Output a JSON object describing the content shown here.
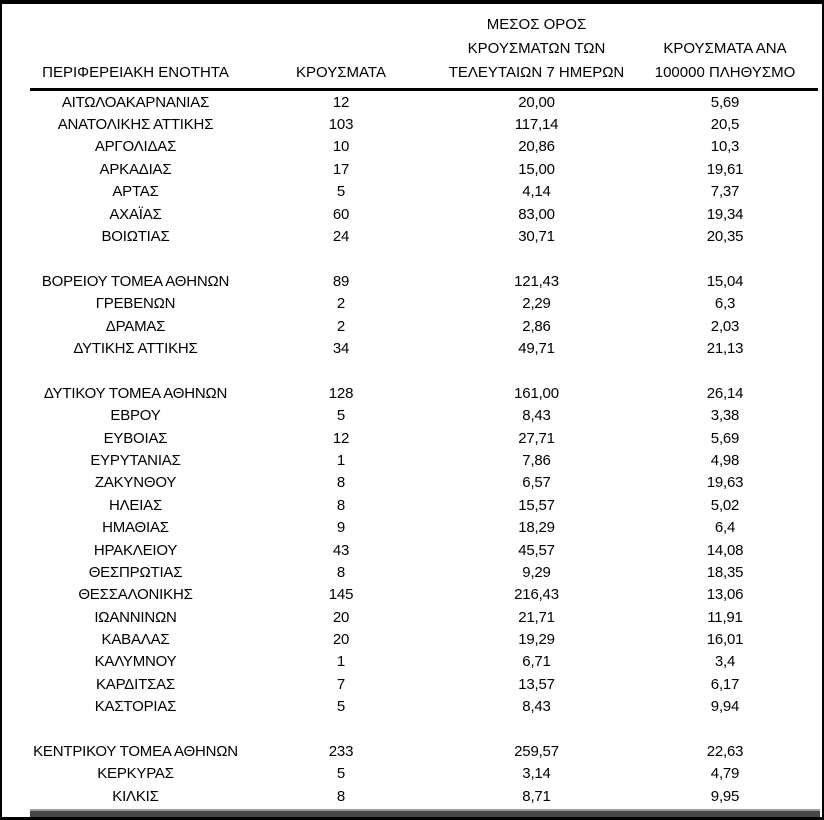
{
  "table": {
    "column_headers": [
      {
        "lines": [
          "ΠΕΡΙΦΕΡΕΙΑΚΗ ΕΝΟΤΗΤΑ"
        ]
      },
      {
        "lines": [
          "ΚΡΟΥΣΜΑΤΑ"
        ]
      },
      {
        "lines": [
          "ΜΕΣΟΣ ΟΡΟΣ",
          "ΚΡΟΥΣΜΑΤΩΝ ΤΩΝ",
          "ΤΕΛΕΥΤΑΙΩΝ 7 ΗΜΕΡΩΝ"
        ]
      },
      {
        "lines": [
          "ΚΡΟΥΣΜΑΤΑ ΑΝΑ",
          "100000 ΠΛΗΘΥΣΜΟ"
        ]
      }
    ],
    "rows": [
      {
        "region": "ΑΙΤΩΛΟΑΚΑΡΝΑΝΙΑΣ",
        "cases": "12",
        "avg_7day": "20,00",
        "per_100k": "5,69"
      },
      {
        "region": "ΑΝΑΤΟΛΙΚΗΣ ΑΤΤΙΚΗΣ",
        "cases": "103",
        "avg_7day": "117,14",
        "per_100k": "20,5"
      },
      {
        "region": "ΑΡΓΟΛΙΔΑΣ",
        "cases": "10",
        "avg_7day": "20,86",
        "per_100k": "10,3"
      },
      {
        "region": "ΑΡΚΑΔΙΑΣ",
        "cases": "17",
        "avg_7day": "15,00",
        "per_100k": "19,61"
      },
      {
        "region": "ΑΡΤΑΣ",
        "cases": "5",
        "avg_7day": "4,14",
        "per_100k": "7,37"
      },
      {
        "region": "ΑΧΑΪΑΣ",
        "cases": "60",
        "avg_7day": "83,00",
        "per_100k": "19,34"
      },
      {
        "region": "ΒΟΙΩΤΙΑΣ",
        "cases": "24",
        "avg_7day": "30,71",
        "per_100k": "20,35"
      },
      {
        "spacer": true
      },
      {
        "region": "ΒΟΡΕΙΟΥ ΤΟΜΕΑ ΑΘΗΝΩΝ",
        "cases": "89",
        "avg_7day": "121,43",
        "per_100k": "15,04"
      },
      {
        "region": "ΓΡΕΒΕΝΩΝ",
        "cases": "2",
        "avg_7day": "2,29",
        "per_100k": "6,3"
      },
      {
        "region": "ΔΡΑΜΑΣ",
        "cases": "2",
        "avg_7day": "2,86",
        "per_100k": "2,03"
      },
      {
        "region": "ΔΥΤΙΚΗΣ ΑΤΤΙΚΗΣ",
        "cases": "34",
        "avg_7day": "49,71",
        "per_100k": "21,13"
      },
      {
        "spacer": true
      },
      {
        "region": "ΔΥΤΙΚΟΥ ΤΟΜΕΑ ΑΘΗΝΩΝ",
        "cases": "128",
        "avg_7day": "161,00",
        "per_100k": "26,14"
      },
      {
        "region": "ΕΒΡΟΥ",
        "cases": "5",
        "avg_7day": "8,43",
        "per_100k": "3,38"
      },
      {
        "region": "ΕΥΒΟΙΑΣ",
        "cases": "12",
        "avg_7day": "27,71",
        "per_100k": "5,69"
      },
      {
        "region": "ΕΥΡΥΤΑΝΙΑΣ",
        "cases": "1",
        "avg_7day": "7,86",
        "per_100k": "4,98"
      },
      {
        "region": "ΖΑΚΥΝΘΟΥ",
        "cases": "8",
        "avg_7day": "6,57",
        "per_100k": "19,63"
      },
      {
        "region": "ΗΛΕΙΑΣ",
        "cases": "8",
        "avg_7day": "15,57",
        "per_100k": "5,02"
      },
      {
        "region": "ΗΜΑΘΙΑΣ",
        "cases": "9",
        "avg_7day": "18,29",
        "per_100k": "6,4"
      },
      {
        "region": "ΗΡΑΚΛΕΙΟΥ",
        "cases": "43",
        "avg_7day": "45,57",
        "per_100k": "14,08"
      },
      {
        "region": "ΘΕΣΠΡΩΤΙΑΣ",
        "cases": "8",
        "avg_7day": "9,29",
        "per_100k": "18,35"
      },
      {
        "region": "ΘΕΣΣΑΛΟΝΙΚΗΣ",
        "cases": "145",
        "avg_7day": "216,43",
        "per_100k": "13,06"
      },
      {
        "region": "ΙΩΑΝΝΙΝΩΝ",
        "cases": "20",
        "avg_7day": "21,71",
        "per_100k": "11,91"
      },
      {
        "region": "ΚΑΒΑΛΑΣ",
        "cases": "20",
        "avg_7day": "19,29",
        "per_100k": "16,01"
      },
      {
        "region": "ΚΑΛΥΜΝΟΥ",
        "cases": "1",
        "avg_7day": "6,71",
        "per_100k": "3,4"
      },
      {
        "region": "ΚΑΡΔΙΤΣΑΣ",
        "cases": "7",
        "avg_7day": "13,57",
        "per_100k": "6,17"
      },
      {
        "region": "ΚΑΣΤΟΡΙΑΣ",
        "cases": "5",
        "avg_7day": "8,43",
        "per_100k": "9,94"
      },
      {
        "spacer": true
      },
      {
        "region": "ΚΕΝΤΡΙΚΟΥ ΤΟΜΕΑ ΑΘΗΝΩΝ",
        "cases": "233",
        "avg_7day": "259,57",
        "per_100k": "22,63"
      },
      {
        "region": "ΚΕΡΚΥΡΑΣ",
        "cases": "5",
        "avg_7day": "3,14",
        "per_100k": "4,79"
      },
      {
        "region": "ΚΙΛΚΙΣ",
        "cases": "8",
        "avg_7day": "8,71",
        "per_100k": "9,95"
      }
    ]
  },
  "colors": {
    "frame_border": "#000000",
    "text": "#000000",
    "background": "#ffffff",
    "bottom_bar_dark": "#474747",
    "bottom_bar_light": "#9c9c9c"
  }
}
